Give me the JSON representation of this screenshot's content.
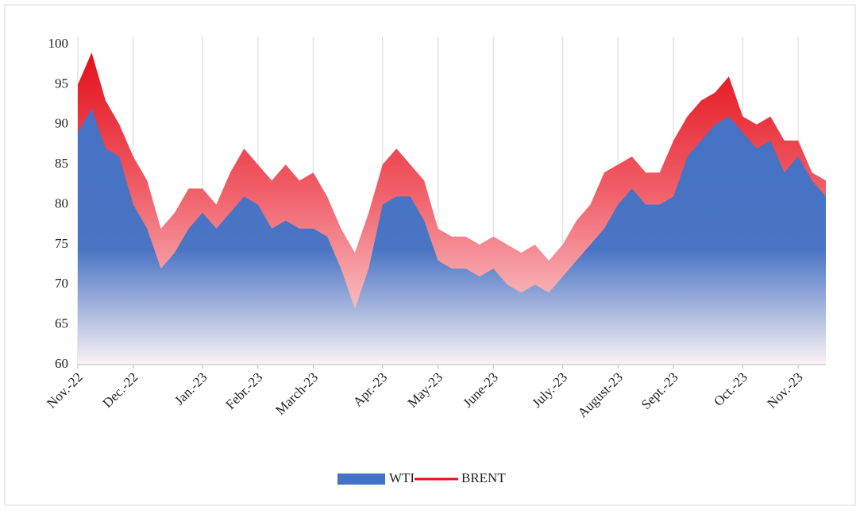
{
  "chart_data": {
    "type": "area",
    "categories": [
      "Nov.-22",
      null,
      null,
      null,
      "Dec.-22",
      null,
      null,
      null,
      null,
      "Jan.-23",
      null,
      null,
      null,
      "Febr.-23",
      null,
      null,
      null,
      "March-23",
      null,
      null,
      null,
      null,
      "Apr.-23",
      null,
      null,
      null,
      "May-23",
      null,
      null,
      null,
      "June-23",
      null,
      null,
      null,
      null,
      "July.-23",
      null,
      null,
      null,
      "August-23",
      null,
      null,
      null,
      "Sept.-23",
      null,
      null,
      null,
      null,
      "Oct.-23",
      null,
      null,
      null,
      "Nov.-23",
      null,
      null
    ],
    "series": [
      {
        "name": "BRENT",
        "color": "#e3101a",
        "values": [
          95,
          99,
          93,
          90,
          86,
          83,
          77,
          79,
          82,
          82,
          80,
          84,
          87,
          85,
          83,
          85,
          83,
          84,
          81,
          77,
          74,
          79,
          85,
          87,
          85,
          83,
          77,
          76,
          76,
          75,
          76,
          75,
          74,
          75,
          73,
          75,
          78,
          80,
          84,
          85,
          86,
          84,
          84,
          88,
          91,
          93,
          94,
          96,
          91,
          90,
          91,
          88,
          88,
          84,
          83
        ]
      },
      {
        "name": "WTI",
        "color": "#4472c4",
        "values": [
          89,
          92,
          87,
          86,
          80,
          77,
          72,
          74,
          77,
          79,
          77,
          79,
          81,
          80,
          77,
          78,
          77,
          77,
          76,
          72,
          67,
          72,
          80,
          81,
          81,
          78,
          73,
          72,
          72,
          71,
          72,
          70,
          69,
          70,
          69,
          71,
          73,
          75,
          77,
          80,
          82,
          80,
          80,
          81,
          86,
          88,
          90,
          91,
          89,
          87,
          88,
          84,
          86,
          83,
          81
        ]
      }
    ],
    "ylim": [
      60,
      100
    ],
    "yticks": [
      60,
      65,
      70,
      75,
      80,
      85,
      90,
      95,
      100
    ],
    "grid": true,
    "legend": "bottom"
  }
}
